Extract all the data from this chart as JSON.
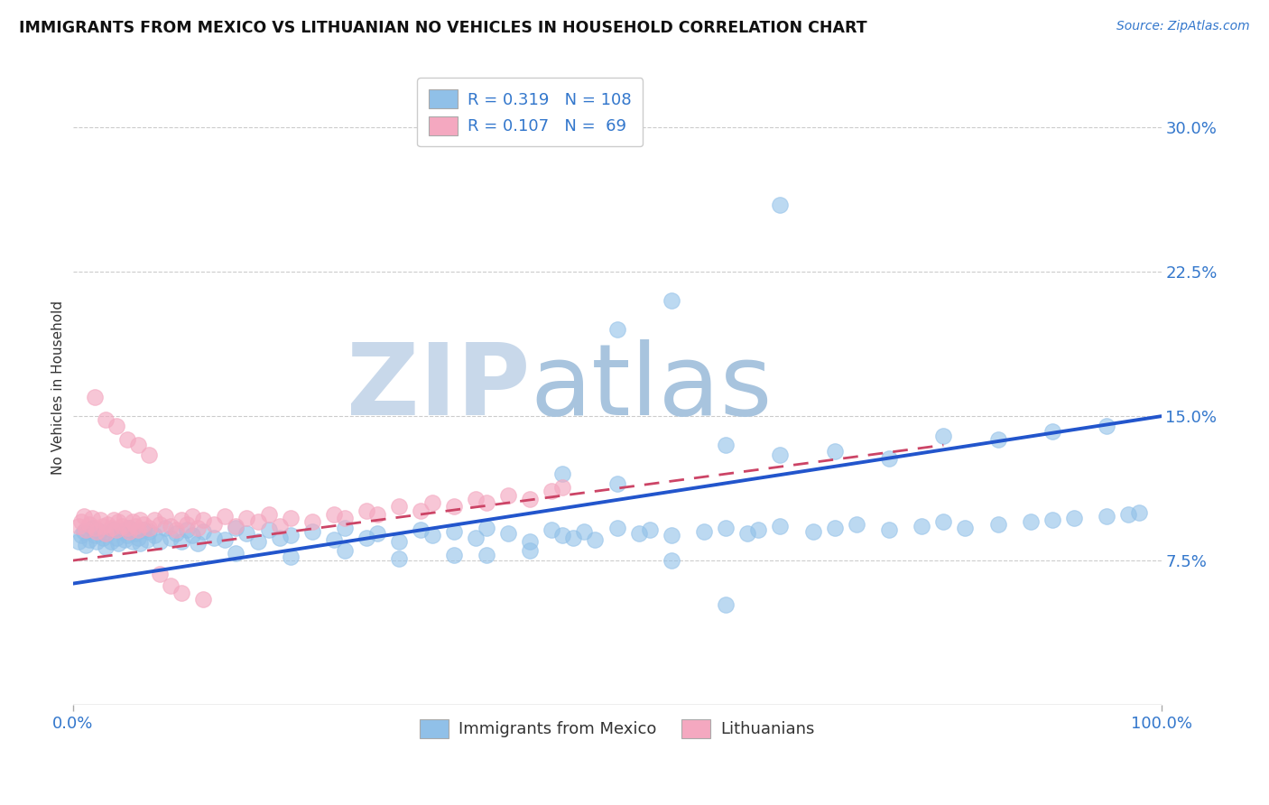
{
  "title": "IMMIGRANTS FROM MEXICO VS LITHUANIAN NO VEHICLES IN HOUSEHOLD CORRELATION CHART",
  "source_text": "Source: ZipAtlas.com",
  "ylabel": "No Vehicles in Household",
  "right_ytick_labels": [
    "7.5%",
    "15.0%",
    "22.5%",
    "30.0%"
  ],
  "right_ytick_values": [
    0.075,
    0.15,
    0.225,
    0.3
  ],
  "xlim": [
    0.0,
    1.0
  ],
  "ylim": [
    0.0,
    0.33
  ],
  "bottom_legend": [
    "Immigrants from Mexico",
    "Lithuanians"
  ],
  "blue_color": "#90c0e8",
  "pink_color": "#f4a8c0",
  "trend_blue_color": "#2255cc",
  "trend_pink_color": "#cc4466",
  "watermark": "ZIPatlas",
  "watermark_color_zip": "#c0d4e8",
  "watermark_color_atlas": "#a8c8e0",
  "legend_label_blue": "R = 0.319   N = 108",
  "legend_label_pink": "R = 0.107   N =  69",
  "legend_color_blue": "#90c0e8",
  "legend_color_pink": "#f4a8c0",
  "blue_trend_x0": 0.0,
  "blue_trend_y0": 0.063,
  "blue_trend_x1": 1.0,
  "blue_trend_y1": 0.15,
  "pink_trend_x0": 0.0,
  "pink_trend_y0": 0.075,
  "pink_trend_x1": 0.8,
  "pink_trend_y1": 0.135,
  "blue_scatter_x": [
    0.005,
    0.008,
    0.01,
    0.012,
    0.015,
    0.018,
    0.02,
    0.022,
    0.025,
    0.028,
    0.03,
    0.032,
    0.035,
    0.038,
    0.04,
    0.042,
    0.045,
    0.048,
    0.05,
    0.052,
    0.055,
    0.058,
    0.06,
    0.062,
    0.065,
    0.068,
    0.07,
    0.075,
    0.08,
    0.085,
    0.09,
    0.095,
    0.1,
    0.105,
    0.11,
    0.115,
    0.12,
    0.13,
    0.14,
    0.15,
    0.16,
    0.17,
    0.18,
    0.19,
    0.2,
    0.22,
    0.24,
    0.25,
    0.27,
    0.28,
    0.3,
    0.32,
    0.33,
    0.35,
    0.37,
    0.38,
    0.4,
    0.42,
    0.44,
    0.45,
    0.46,
    0.47,
    0.48,
    0.5,
    0.52,
    0.53,
    0.55,
    0.58,
    0.6,
    0.62,
    0.63,
    0.65,
    0.68,
    0.7,
    0.72,
    0.75,
    0.78,
    0.8,
    0.82,
    0.85,
    0.88,
    0.9,
    0.92,
    0.95,
    0.97,
    0.98,
    0.45,
    0.5,
    0.38,
    0.42,
    0.55,
    0.3,
    0.35,
    0.25,
    0.2,
    0.15,
    0.6,
    0.65,
    0.7,
    0.75,
    0.8,
    0.85,
    0.9,
    0.95,
    0.5,
    0.55,
    0.6,
    0.65
  ],
  "blue_scatter_y": [
    0.085,
    0.088,
    0.09,
    0.083,
    0.086,
    0.092,
    0.088,
    0.085,
    0.09,
    0.087,
    0.082,
    0.089,
    0.085,
    0.091,
    0.087,
    0.084,
    0.09,
    0.086,
    0.088,
    0.092,
    0.085,
    0.089,
    0.087,
    0.084,
    0.091,
    0.086,
    0.09,
    0.088,
    0.085,
    0.092,
    0.087,
    0.089,
    0.085,
    0.091,
    0.088,
    0.084,
    0.09,
    0.087,
    0.086,
    0.092,
    0.089,
    0.085,
    0.091,
    0.087,
    0.088,
    0.09,
    0.086,
    0.092,
    0.087,
    0.089,
    0.085,
    0.091,
    0.088,
    0.09,
    0.087,
    0.092,
    0.089,
    0.085,
    0.091,
    0.088,
    0.087,
    0.09,
    0.086,
    0.092,
    0.089,
    0.091,
    0.088,
    0.09,
    0.092,
    0.089,
    0.091,
    0.093,
    0.09,
    0.092,
    0.094,
    0.091,
    0.093,
    0.095,
    0.092,
    0.094,
    0.095,
    0.096,
    0.097,
    0.098,
    0.099,
    0.1,
    0.12,
    0.115,
    0.078,
    0.08,
    0.075,
    0.076,
    0.078,
    0.08,
    0.077,
    0.079,
    0.135,
    0.13,
    0.132,
    0.128,
    0.14,
    0.138,
    0.142,
    0.145,
    0.195,
    0.21,
    0.052,
    0.26
  ],
  "pink_scatter_x": [
    0.005,
    0.008,
    0.01,
    0.012,
    0.015,
    0.018,
    0.02,
    0.022,
    0.025,
    0.028,
    0.03,
    0.032,
    0.035,
    0.038,
    0.04,
    0.042,
    0.045,
    0.048,
    0.05,
    0.052,
    0.055,
    0.058,
    0.06,
    0.062,
    0.065,
    0.07,
    0.075,
    0.08,
    0.085,
    0.09,
    0.095,
    0.1,
    0.105,
    0.11,
    0.115,
    0.12,
    0.13,
    0.14,
    0.15,
    0.16,
    0.17,
    0.18,
    0.19,
    0.2,
    0.22,
    0.24,
    0.25,
    0.27,
    0.28,
    0.3,
    0.32,
    0.33,
    0.35,
    0.37,
    0.38,
    0.4,
    0.42,
    0.44,
    0.45,
    0.02,
    0.03,
    0.04,
    0.05,
    0.06,
    0.07,
    0.08,
    0.09,
    0.1,
    0.12
  ],
  "pink_scatter_y": [
    0.093,
    0.095,
    0.098,
    0.091,
    0.094,
    0.097,
    0.092,
    0.09,
    0.096,
    0.093,
    0.089,
    0.094,
    0.092,
    0.096,
    0.091,
    0.095,
    0.093,
    0.097,
    0.092,
    0.09,
    0.095,
    0.093,
    0.091,
    0.096,
    0.094,
    0.092,
    0.096,
    0.094,
    0.098,
    0.093,
    0.091,
    0.096,
    0.094,
    0.098,
    0.092,
    0.096,
    0.094,
    0.098,
    0.093,
    0.097,
    0.095,
    0.099,
    0.093,
    0.097,
    0.095,
    0.099,
    0.097,
    0.101,
    0.099,
    0.103,
    0.101,
    0.105,
    0.103,
    0.107,
    0.105,
    0.109,
    0.107,
    0.111,
    0.113,
    0.16,
    0.148,
    0.145,
    0.138,
    0.135,
    0.13,
    0.068,
    0.062,
    0.058,
    0.055
  ]
}
